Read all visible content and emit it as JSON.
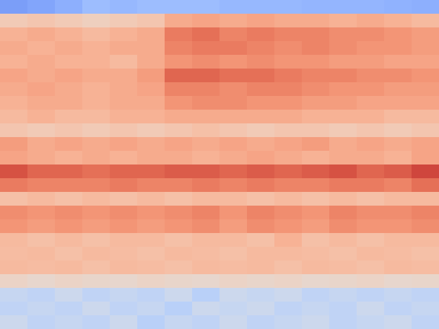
{
  "chart_data": {
    "type": "heatmap",
    "color": "coolwarm",
    "tick_labels": false,
    "zlim": [
      0,
      1
    ],
    "cells": [
      [
        0.2,
        0.22,
        0.25,
        0.3,
        0.28,
        0.3,
        0.3,
        0.3,
        0.28,
        0.28,
        0.28,
        0.27,
        0.27,
        0.27,
        0.26,
        0.25
      ],
      [
        0.6,
        0.62,
        0.6,
        0.58,
        0.6,
        0.62,
        0.7,
        0.72,
        0.7,
        0.72,
        0.7,
        0.7,
        0.68,
        0.7,
        0.68,
        0.66
      ],
      [
        0.68,
        0.7,
        0.68,
        0.66,
        0.68,
        0.7,
        0.82,
        0.84,
        0.8,
        0.82,
        0.8,
        0.8,
        0.78,
        0.78,
        0.76,
        0.74
      ],
      [
        0.7,
        0.68,
        0.7,
        0.68,
        0.7,
        0.7,
        0.8,
        0.82,
        0.82,
        0.8,
        0.78,
        0.8,
        0.78,
        0.76,
        0.76,
        0.74
      ],
      [
        0.68,
        0.7,
        0.68,
        0.68,
        0.66,
        0.7,
        0.76,
        0.78,
        0.76,
        0.78,
        0.76,
        0.76,
        0.74,
        0.74,
        0.72,
        0.72
      ],
      [
        0.72,
        0.7,
        0.72,
        0.7,
        0.7,
        0.74,
        0.86,
        0.86,
        0.84,
        0.84,
        0.82,
        0.8,
        0.8,
        0.78,
        0.78,
        0.76
      ],
      [
        0.7,
        0.72,
        0.7,
        0.68,
        0.7,
        0.72,
        0.8,
        0.8,
        0.78,
        0.8,
        0.8,
        0.78,
        0.76,
        0.76,
        0.74,
        0.74
      ],
      [
        0.68,
        0.7,
        0.7,
        0.68,
        0.7,
        0.7,
        0.76,
        0.78,
        0.78,
        0.76,
        0.76,
        0.74,
        0.74,
        0.72,
        0.72,
        0.72
      ],
      [
        0.66,
        0.68,
        0.66,
        0.66,
        0.68,
        0.68,
        0.7,
        0.7,
        0.7,
        0.7,
        0.7,
        0.68,
        0.68,
        0.68,
        0.66,
        0.66
      ],
      [
        0.62,
        0.6,
        0.62,
        0.6,
        0.62,
        0.6,
        0.62,
        0.64,
        0.62,
        0.6,
        0.62,
        0.62,
        0.6,
        0.62,
        0.6,
        0.62
      ],
      [
        0.74,
        0.7,
        0.72,
        0.7,
        0.72,
        0.7,
        0.72,
        0.7,
        0.72,
        0.7,
        0.72,
        0.74,
        0.7,
        0.72,
        0.7,
        0.72
      ],
      [
        0.72,
        0.7,
        0.68,
        0.7,
        0.68,
        0.7,
        0.7,
        0.68,
        0.7,
        0.72,
        0.7,
        0.68,
        0.7,
        0.7,
        0.68,
        0.72
      ],
      [
        0.9,
        0.86,
        0.86,
        0.84,
        0.86,
        0.86,
        0.88,
        0.88,
        0.86,
        0.88,
        0.86,
        0.88,
        0.9,
        0.86,
        0.88,
        0.92
      ],
      [
        0.82,
        0.8,
        0.8,
        0.8,
        0.82,
        0.8,
        0.8,
        0.82,
        0.8,
        0.82,
        0.8,
        0.8,
        0.82,
        0.82,
        0.8,
        0.84
      ],
      [
        0.64,
        0.66,
        0.64,
        0.66,
        0.64,
        0.66,
        0.64,
        0.66,
        0.66,
        0.64,
        0.66,
        0.64,
        0.66,
        0.64,
        0.66,
        0.66
      ],
      [
        0.78,
        0.76,
        0.78,
        0.76,
        0.78,
        0.76,
        0.78,
        0.8,
        0.76,
        0.8,
        0.78,
        0.76,
        0.8,
        0.78,
        0.78,
        0.8
      ],
      [
        0.76,
        0.74,
        0.76,
        0.74,
        0.76,
        0.74,
        0.76,
        0.78,
        0.74,
        0.78,
        0.76,
        0.74,
        0.78,
        0.76,
        0.76,
        0.78
      ],
      [
        0.66,
        0.64,
        0.66,
        0.64,
        0.66,
        0.66,
        0.64,
        0.66,
        0.66,
        0.64,
        0.68,
        0.64,
        0.66,
        0.64,
        0.66,
        0.66
      ],
      [
        0.65,
        0.66,
        0.64,
        0.66,
        0.65,
        0.64,
        0.66,
        0.65,
        0.64,
        0.66,
        0.66,
        0.65,
        0.64,
        0.66,
        0.65,
        0.64
      ],
      [
        0.66,
        0.65,
        0.66,
        0.64,
        0.66,
        0.65,
        0.64,
        0.66,
        0.65,
        0.66,
        0.64,
        0.66,
        0.65,
        0.64,
        0.66,
        0.65
      ],
      [
        0.56,
        0.54,
        0.56,
        0.55,
        0.54,
        0.56,
        0.55,
        0.54,
        0.56,
        0.55,
        0.56,
        0.54,
        0.55,
        0.56,
        0.54,
        0.55
      ],
      [
        0.42,
        0.4,
        0.44,
        0.4,
        0.42,
        0.4,
        0.44,
        0.38,
        0.44,
        0.42,
        0.44,
        0.4,
        0.42,
        0.4,
        0.42,
        0.4
      ],
      [
        0.4,
        0.42,
        0.4,
        0.44,
        0.4,
        0.42,
        0.38,
        0.44,
        0.42,
        0.44,
        0.4,
        0.42,
        0.4,
        0.44,
        0.4,
        0.42
      ],
      [
        0.44,
        0.4,
        0.42,
        0.4,
        0.44,
        0.38,
        0.42,
        0.4,
        0.44,
        0.4,
        0.42,
        0.44,
        0.4,
        0.42,
        0.44,
        0.4
      ]
    ]
  }
}
